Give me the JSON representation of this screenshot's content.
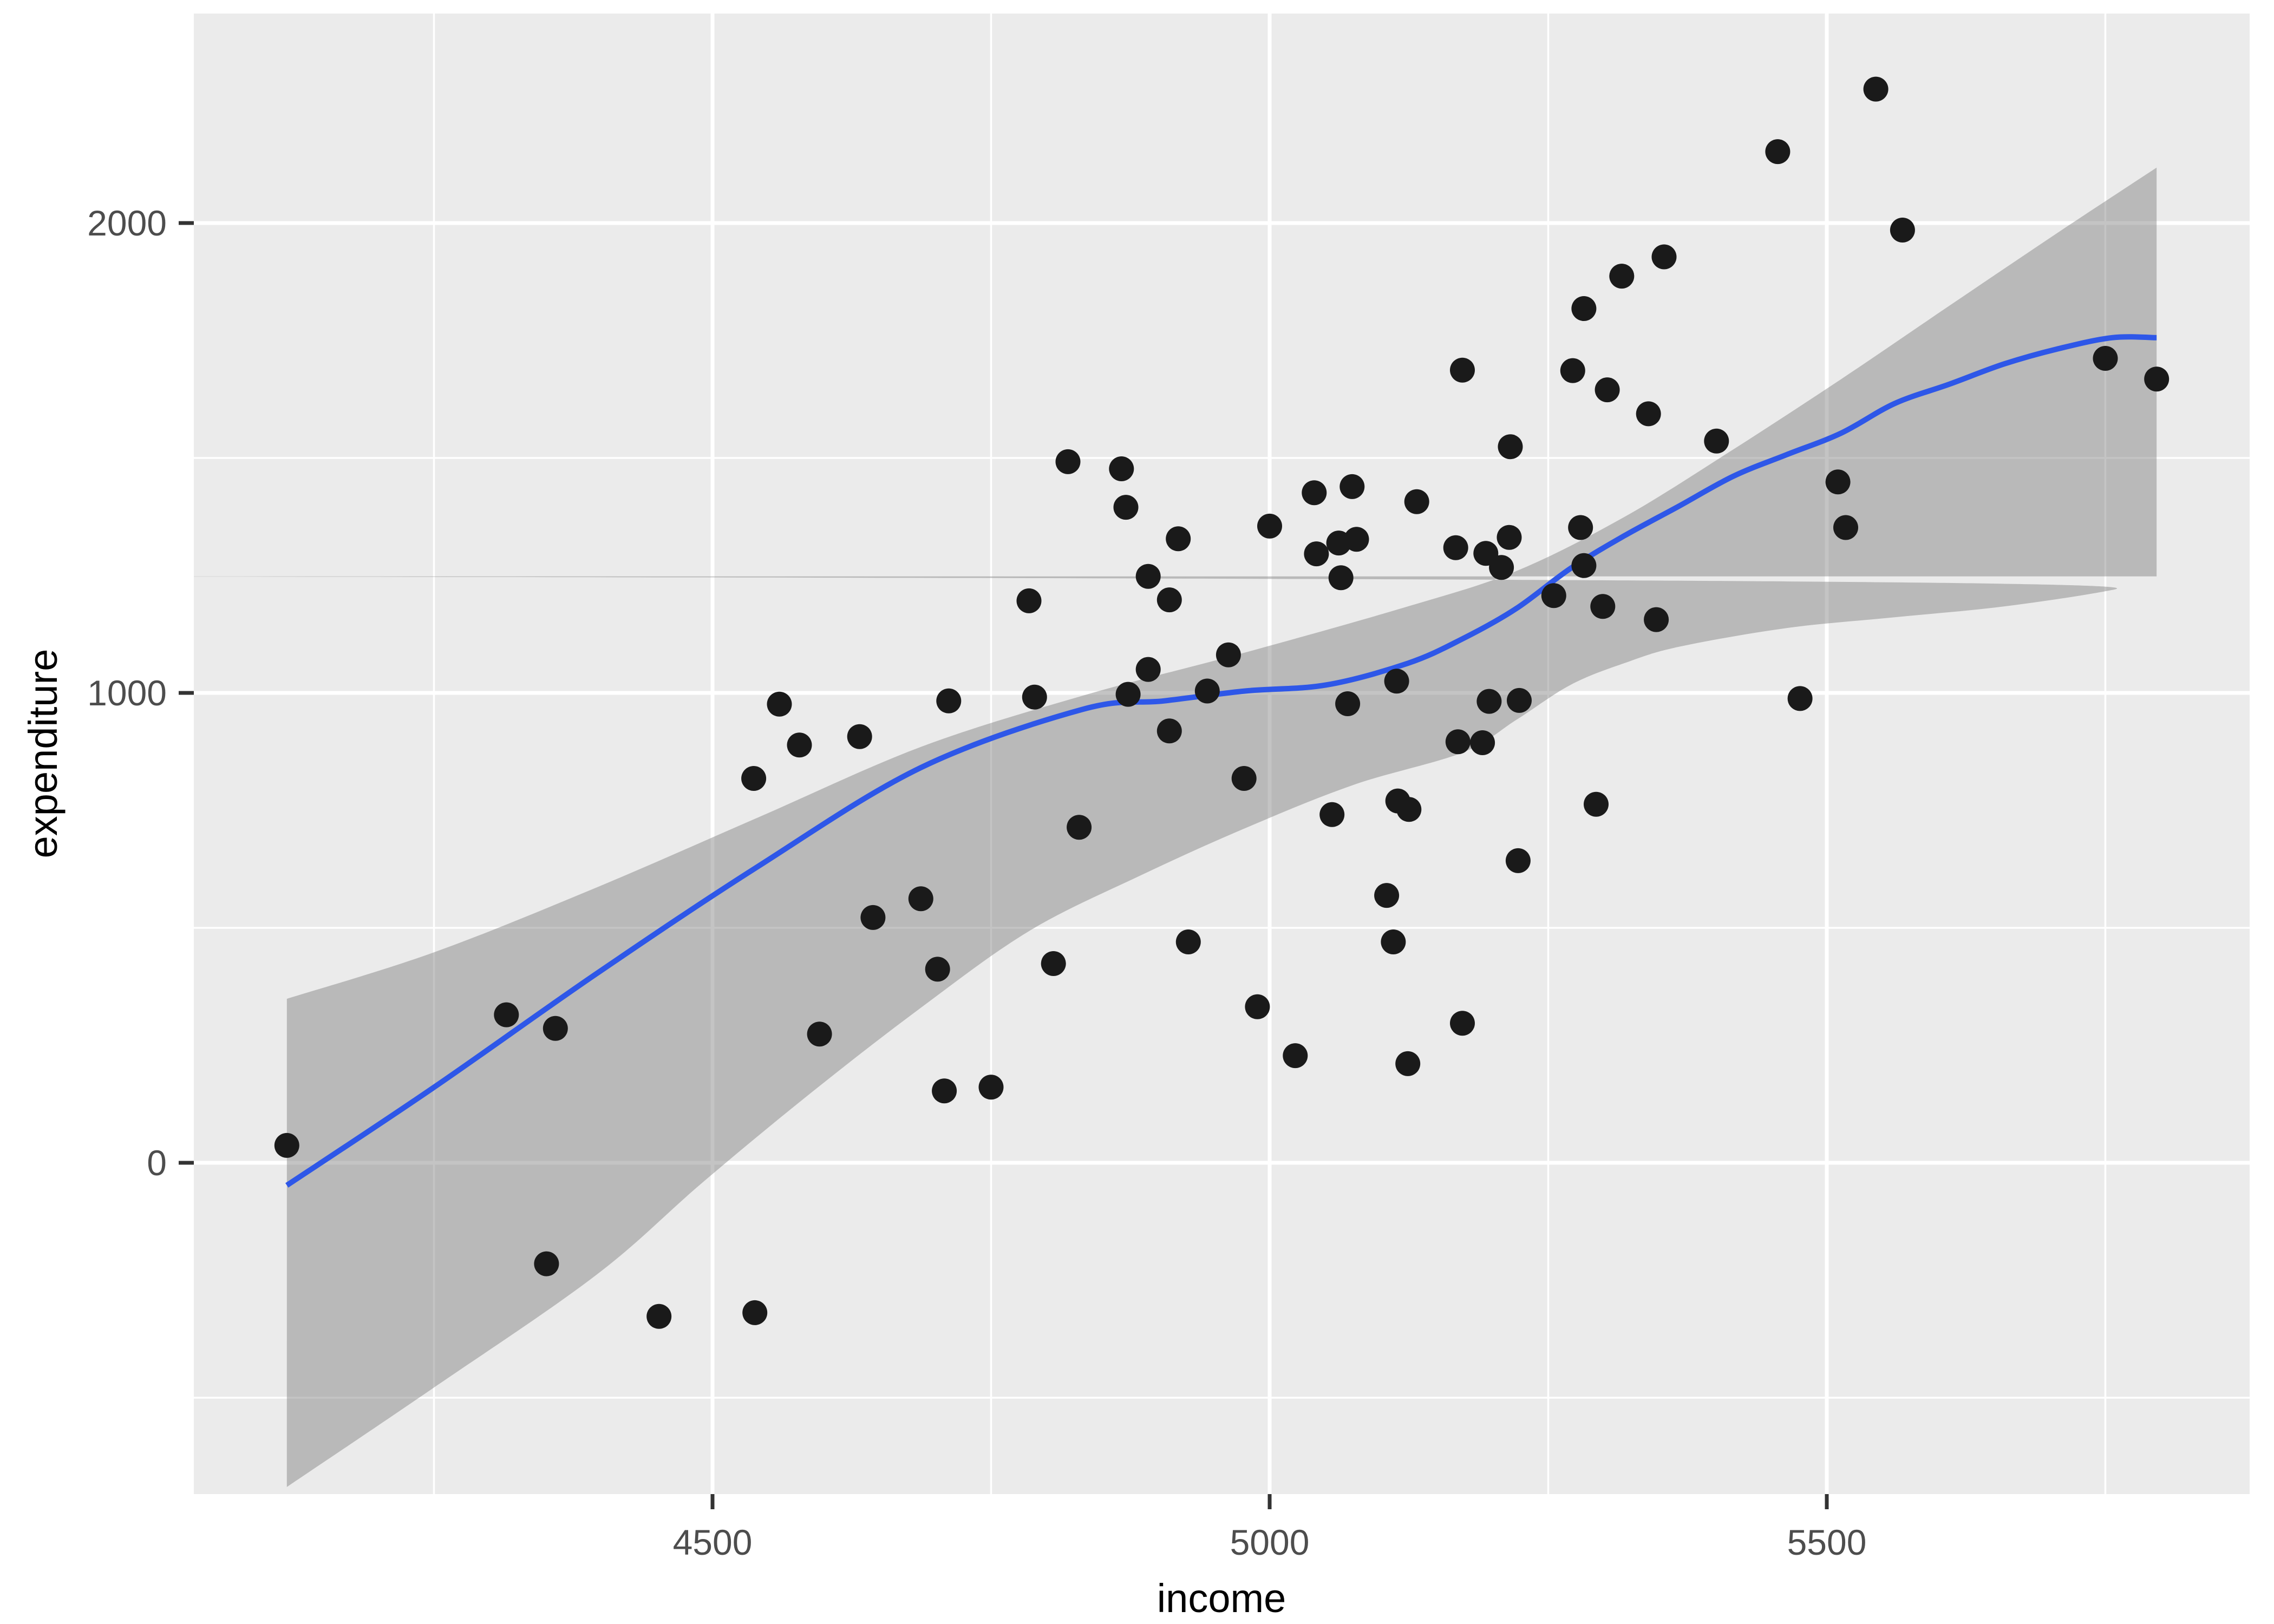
{
  "chart_data": {
    "type": "scatter",
    "title": "",
    "xlabel": "income",
    "ylabel": "expenditure",
    "legend": "none",
    "grid": "white major and minor gridlines on grey panel",
    "panel_color": "#EBEBEB",
    "background_color": "#FFFFFF",
    "point_color": "#1A1A1A",
    "smooth_line_color": "#2E57E8",
    "ribbon_color": "rgba(125,125,125,0.45)",
    "tick_text_color": "#4D4D4D",
    "xlim": [
      4036,
      5879
    ],
    "ylim": [
      -694,
      2448
    ],
    "x_ticks": {
      "values": [
        4500,
        5000,
        5500
      ],
      "labels": [
        "4500",
        "5000",
        "5500"
      ]
    },
    "y_ticks": {
      "values": [
        0,
        1000,
        2000
      ],
      "labels": [
        "0",
        "1000",
        "2000"
      ]
    },
    "x_minor": [
      4250,
      4750,
      5250,
      5750
    ],
    "y_minor": [
      -500,
      500,
      1500
    ],
    "points": [
      [
        4118,
        37
      ],
      [
        4315,
        315
      ],
      [
        4359,
        286
      ],
      [
        4351,
        -215
      ],
      [
        4452,
        -327
      ],
      [
        4538,
        -319
      ],
      [
        4537,
        818
      ],
      [
        4708,
        153
      ],
      [
        4750,
        161
      ],
      [
        4596,
        274
      ],
      [
        4644,
        522
      ],
      [
        4687,
        562
      ],
      [
        4702,
        412
      ],
      [
        4806,
        424
      ],
      [
        4829,
        714
      ],
      [
        4560,
        976
      ],
      [
        4578,
        889
      ],
      [
        4632,
        907
      ],
      [
        4712,
        983
      ],
      [
        4789,
        991
      ],
      [
        4873,
        997
      ],
      [
        4891,
        1050
      ],
      [
        4910,
        919
      ],
      [
        4944,
        1004
      ],
      [
        4784,
        1196
      ],
      [
        4891,
        1248
      ],
      [
        4910,
        1198
      ],
      [
        4963,
        1081
      ],
      [
        4819,
        1492
      ],
      [
        4867,
        1477
      ],
      [
        4871,
        1395
      ],
      [
        5000,
        1355
      ],
      [
        5040,
        1426
      ],
      [
        5074,
        1439
      ],
      [
        5132,
        1407
      ],
      [
        5173,
        1687
      ],
      [
        5216,
        1524
      ],
      [
        5042,
        1296
      ],
      [
        5062,
        1319
      ],
      [
        5078,
        1327
      ],
      [
        5064,
        1245
      ],
      [
        5167,
        1309
      ],
      [
        5194,
        1297
      ],
      [
        5208,
        1267
      ],
      [
        5215,
        1331
      ],
      [
        4918,
        1328
      ],
      [
        4977,
        818
      ],
      [
        5056,
        741
      ],
      [
        5115,
        770
      ],
      [
        5125,
        752
      ],
      [
        5105,
        569
      ],
      [
        5111,
        470
      ],
      [
        5070,
        977
      ],
      [
        5114,
        1025
      ],
      [
        5169,
        896
      ],
      [
        5191,
        894
      ],
      [
        5197,
        982
      ],
      [
        5224,
        984
      ],
      [
        4927,
        470
      ],
      [
        4989,
        332
      ],
      [
        5023,
        228
      ],
      [
        5124,
        211
      ],
      [
        5173,
        297
      ],
      [
        5282,
        1271
      ],
      [
        5255,
        1207
      ],
      [
        5299,
        1184
      ],
      [
        5347,
        1156
      ],
      [
        5476,
        988
      ],
      [
        5293,
        763
      ],
      [
        5223,
        643
      ],
      [
        5544,
        2285
      ],
      [
        5456,
        2152
      ],
      [
        5568,
        1985
      ],
      [
        5354,
        1928
      ],
      [
        5316,
        1887
      ],
      [
        5282,
        1818
      ],
      [
        5272,
        1686
      ],
      [
        5303,
        1645
      ],
      [
        5340,
        1594
      ],
      [
        5401,
        1536
      ],
      [
        5750,
        1712
      ],
      [
        5796,
        1668
      ],
      [
        5510,
        1449
      ],
      [
        5517,
        1352
      ],
      [
        5279,
        1352
      ]
    ],
    "smooth_line": [
      [
        4118,
        -48
      ],
      [
        4249,
        159
      ],
      [
        4395,
        401
      ],
      [
        4541,
        631
      ],
      [
        4687,
        841
      ],
      [
        4832,
        965
      ],
      [
        4905,
        983
      ],
      [
        4978,
        1004
      ],
      [
        5051,
        1017
      ],
      [
        5124,
        1063
      ],
      [
        5173,
        1115
      ],
      [
        5221,
        1179
      ],
      [
        5270,
        1265
      ],
      [
        5318,
        1334
      ],
      [
        5367,
        1397
      ],
      [
        5416,
        1461
      ],
      [
        5464,
        1507
      ],
      [
        5513,
        1553
      ],
      [
        5561,
        1616
      ],
      [
        5610,
        1657
      ],
      [
        5659,
        1700
      ],
      [
        5707,
        1732
      ],
      [
        5756,
        1756
      ],
      [
        5796,
        1756
      ]
    ],
    "ribbon_upper": [
      [
        4118,
        349
      ],
      [
        4249,
        447
      ],
      [
        4395,
        585
      ],
      [
        4541,
        735
      ],
      [
        4687,
        885
      ],
      [
        4832,
        994
      ],
      [
        4978,
        1086
      ],
      [
        5124,
        1184
      ],
      [
        5221,
        1259
      ],
      [
        5318,
        1374
      ],
      [
        5416,
        1518
      ],
      [
        5513,
        1668
      ],
      [
        5610,
        1824
      ],
      [
        5707,
        1979
      ],
      [
        5796,
        2118
      ]
    ],
    "ribbon_lower": [
      [
        4118,
        -690
      ],
      [
        4249,
        -480
      ],
      [
        4395,
        -240
      ],
      [
        4492,
        -40
      ],
      [
        4589,
        150
      ],
      [
        4687,
        330
      ],
      [
        4784,
        493
      ],
      [
        4881,
        608
      ],
      [
        4978,
        712
      ],
      [
        5075,
        804
      ],
      [
        5173,
        873
      ],
      [
        5221,
        942
      ],
      [
        5270,
        1017
      ],
      [
        5318,
        1063
      ],
      [
        5367,
        1098
      ],
      [
        5464,
        1138
      ],
      [
        5561,
        1161
      ],
      [
        5659,
        1184
      ],
      [
        5756,
        1219
      ],
      [
        5796,
        1248
      ]
    ]
  }
}
